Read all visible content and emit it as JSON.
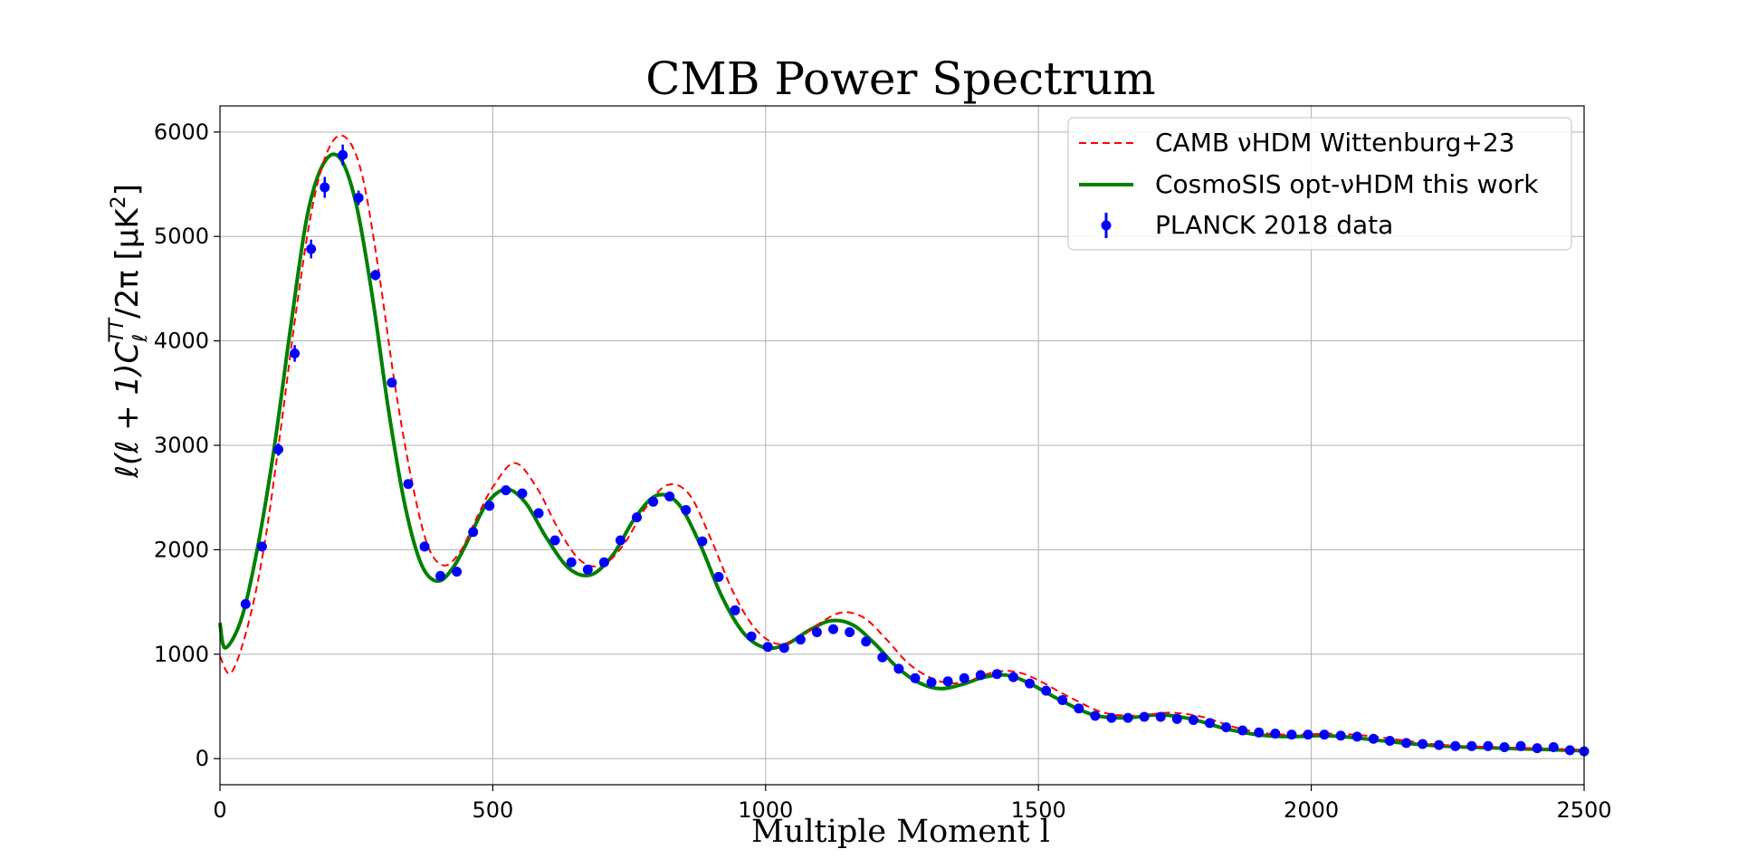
{
  "chart_data": {
    "type": "line",
    "title": "CMB Power Spectrum",
    "xlabel": "Multiple Moment l",
    "ylabel": "ℓ(ℓ + 1)C",
    "ylabel_sub": "ℓ",
    "ylabel_sup": "TT",
    "ylabel_tail": "/2π [μK",
    "ylabel_sup2": "2",
    "ylabel_end": "]",
    "xlim": [
      0,
      2500
    ],
    "ylim": [
      -250,
      6250
    ],
    "xticks": [
      0,
      500,
      1000,
      1500,
      2000,
      2500
    ],
    "yticks": [
      0,
      1000,
      2000,
      3000,
      4000,
      5000,
      6000
    ],
    "grid": true,
    "legend_position": "top-right",
    "series": [
      {
        "name": "CAMB νHDM Wittenburg+23",
        "style": "dashed",
        "color": "#ff0000",
        "x": [
          0,
          20,
          50,
          80,
          110,
          140,
          170,
          200,
          230,
          260,
          290,
          320,
          350,
          380,
          410,
          440,
          470,
          500,
          540,
          580,
          620,
          660,
          700,
          740,
          780,
          820,
          860,
          900,
          940,
          980,
          1020,
          1060,
          1100,
          1140,
          1180,
          1220,
          1260,
          1300,
          1340,
          1380,
          1420,
          1460,
          1500,
          1560,
          1620,
          1680,
          1740,
          1800,
          1860,
          1920,
          1980,
          2040,
          2100,
          2160,
          2220,
          2280,
          2340,
          2400,
          2460,
          2500
        ],
        "y": [
          980,
          820,
          1250,
          2000,
          3100,
          4300,
          5300,
          5850,
          5950,
          5600,
          4700,
          3600,
          2700,
          2050,
          1850,
          1980,
          2300,
          2600,
          2830,
          2600,
          2200,
          1900,
          1850,
          2050,
          2400,
          2620,
          2530,
          2100,
          1600,
          1250,
          1100,
          1150,
          1300,
          1400,
          1350,
          1150,
          920,
          780,
          720,
          760,
          830,
          830,
          750,
          580,
          440,
          410,
          440,
          400,
          300,
          240,
          230,
          240,
          220,
          180,
          140,
          120,
          110,
          100,
          90,
          80
        ]
      },
      {
        "name": "CosmoSIS opt-νHDM this work",
        "style": "solid",
        "color": "#008000",
        "x": [
          0,
          10,
          40,
          70,
          100,
          130,
          160,
          190,
          220,
          250,
          280,
          310,
          340,
          370,
          400,
          430,
          460,
          490,
          525,
          560,
          600,
          640,
          680,
          720,
          760,
          800,
          840,
          880,
          920,
          960,
          1000,
          1040,
          1080,
          1120,
          1160,
          1200,
          1240,
          1280,
          1320,
          1360,
          1400,
          1440,
          1480,
          1540,
          1600,
          1660,
          1720,
          1780,
          1840,
          1900,
          1960,
          2020,
          2080,
          2140,
          2200,
          2260,
          2320,
          2380,
          2440,
          2500
        ],
        "y": [
          1300,
          1060,
          1350,
          2050,
          3000,
          4150,
          5200,
          5700,
          5750,
          5300,
          4400,
          3300,
          2400,
          1850,
          1700,
          1850,
          2150,
          2450,
          2580,
          2450,
          2100,
          1820,
          1760,
          1950,
          2300,
          2520,
          2440,
          2050,
          1550,
          1200,
          1060,
          1100,
          1230,
          1320,
          1280,
          1100,
          880,
          730,
          670,
          710,
          780,
          800,
          730,
          560,
          420,
          390,
          420,
          380,
          290,
          230,
          210,
          220,
          200,
          165,
          135,
          115,
          105,
          95,
          85,
          75
        ]
      }
    ],
    "data_points": {
      "name": "PLANCK 2018 data",
      "color": "#0000ff",
      "x": [
        47,
        77,
        107,
        137,
        167,
        192,
        225,
        254,
        285,
        315,
        345,
        375,
        404,
        434,
        464,
        494,
        524,
        554,
        584,
        614,
        644,
        674,
        704,
        734,
        764,
        794,
        824,
        854,
        884,
        914,
        944,
        974,
        1004,
        1034,
        1064,
        1094,
        1124,
        1154,
        1184,
        1214,
        1244,
        1274,
        1304,
        1334,
        1364,
        1394,
        1424,
        1454,
        1484,
        1514,
        1544,
        1574,
        1604,
        1634,
        1664,
        1694,
        1724,
        1754,
        1784,
        1814,
        1844,
        1874,
        1904,
        1934,
        1964,
        1994,
        2024,
        2054,
        2084,
        2114,
        2144,
        2174,
        2204,
        2234,
        2264,
        2294,
        2324,
        2354,
        2384,
        2414,
        2444,
        2474,
        2500
      ],
      "y": [
        1480,
        2030,
        2960,
        3880,
        4880,
        5470,
        5780,
        5370,
        4630,
        3600,
        2630,
        2030,
        1750,
        1790,
        2170,
        2420,
        2570,
        2540,
        2350,
        2090,
        1880,
        1810,
        1880,
        2090,
        2310,
        2460,
        2510,
        2380,
        2080,
        1740,
        1420,
        1170,
        1070,
        1060,
        1140,
        1210,
        1240,
        1210,
        1120,
        970,
        860,
        770,
        730,
        740,
        770,
        800,
        810,
        780,
        720,
        650,
        560,
        480,
        410,
        390,
        390,
        400,
        400,
        380,
        370,
        340,
        300,
        270,
        250,
        240,
        230,
        230,
        230,
        220,
        210,
        190,
        170,
        150,
        140,
        130,
        120,
        120,
        120,
        110,
        120,
        100,
        110,
        80,
        70
      ],
      "err": [
        30,
        40,
        60,
        80,
        90,
        100,
        100,
        70,
        50,
        40,
        30,
        25,
        20,
        20,
        20,
        20,
        20,
        20,
        20,
        20,
        20,
        15,
        15,
        15,
        15,
        15,
        15,
        15,
        15,
        15,
        15,
        15,
        15,
        15,
        15,
        15,
        15,
        15,
        15,
        15,
        15,
        15,
        15,
        15,
        15,
        15,
        15,
        15,
        15,
        15,
        15,
        15,
        15,
        15,
        15,
        15,
        15,
        15,
        15,
        15,
        15,
        15,
        15,
        15,
        15,
        15,
        15,
        15,
        15,
        15,
        15,
        15,
        15,
        15,
        15,
        15,
        15,
        15,
        15,
        15,
        15,
        15,
        15
      ]
    }
  }
}
